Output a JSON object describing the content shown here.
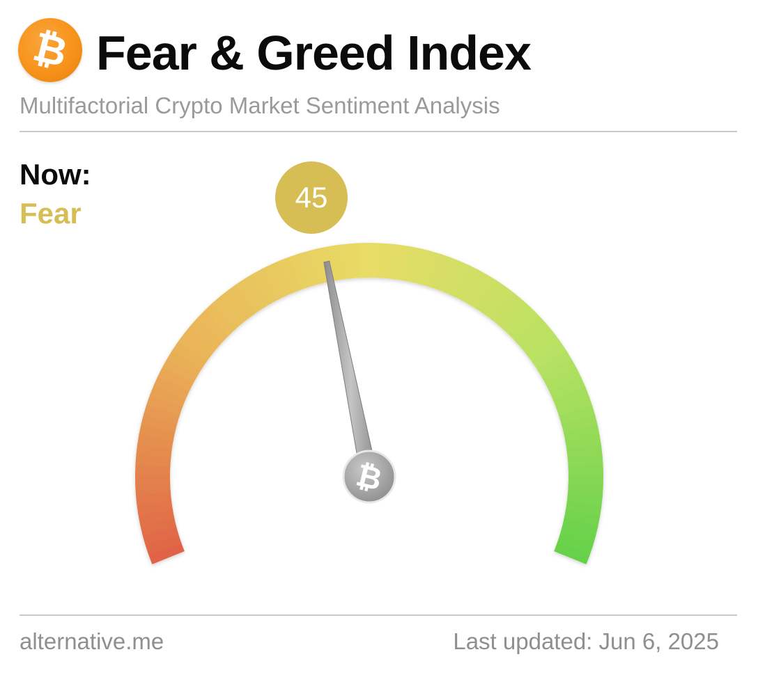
{
  "header": {
    "logo_icon": "bitcoin-icon",
    "title": "Fear & Greed Index",
    "subtitle": "Multifactorial Crypto Market Sentiment Analysis"
  },
  "status": {
    "now_label": "Now:",
    "classification": "Fear",
    "value": 45,
    "value_text": "45",
    "accent_color": "#d6bd54"
  },
  "gauge": {
    "min": 0,
    "max": 100,
    "value": 45,
    "colors": [
      "#e06446",
      "#eab357",
      "#e8dc66",
      "#b9e263",
      "#66d14a"
    ],
    "hub_icon": "bitcoin-icon"
  },
  "footer": {
    "site": "alternative.me",
    "last_updated": "Last updated: Jun 6, 2025"
  }
}
